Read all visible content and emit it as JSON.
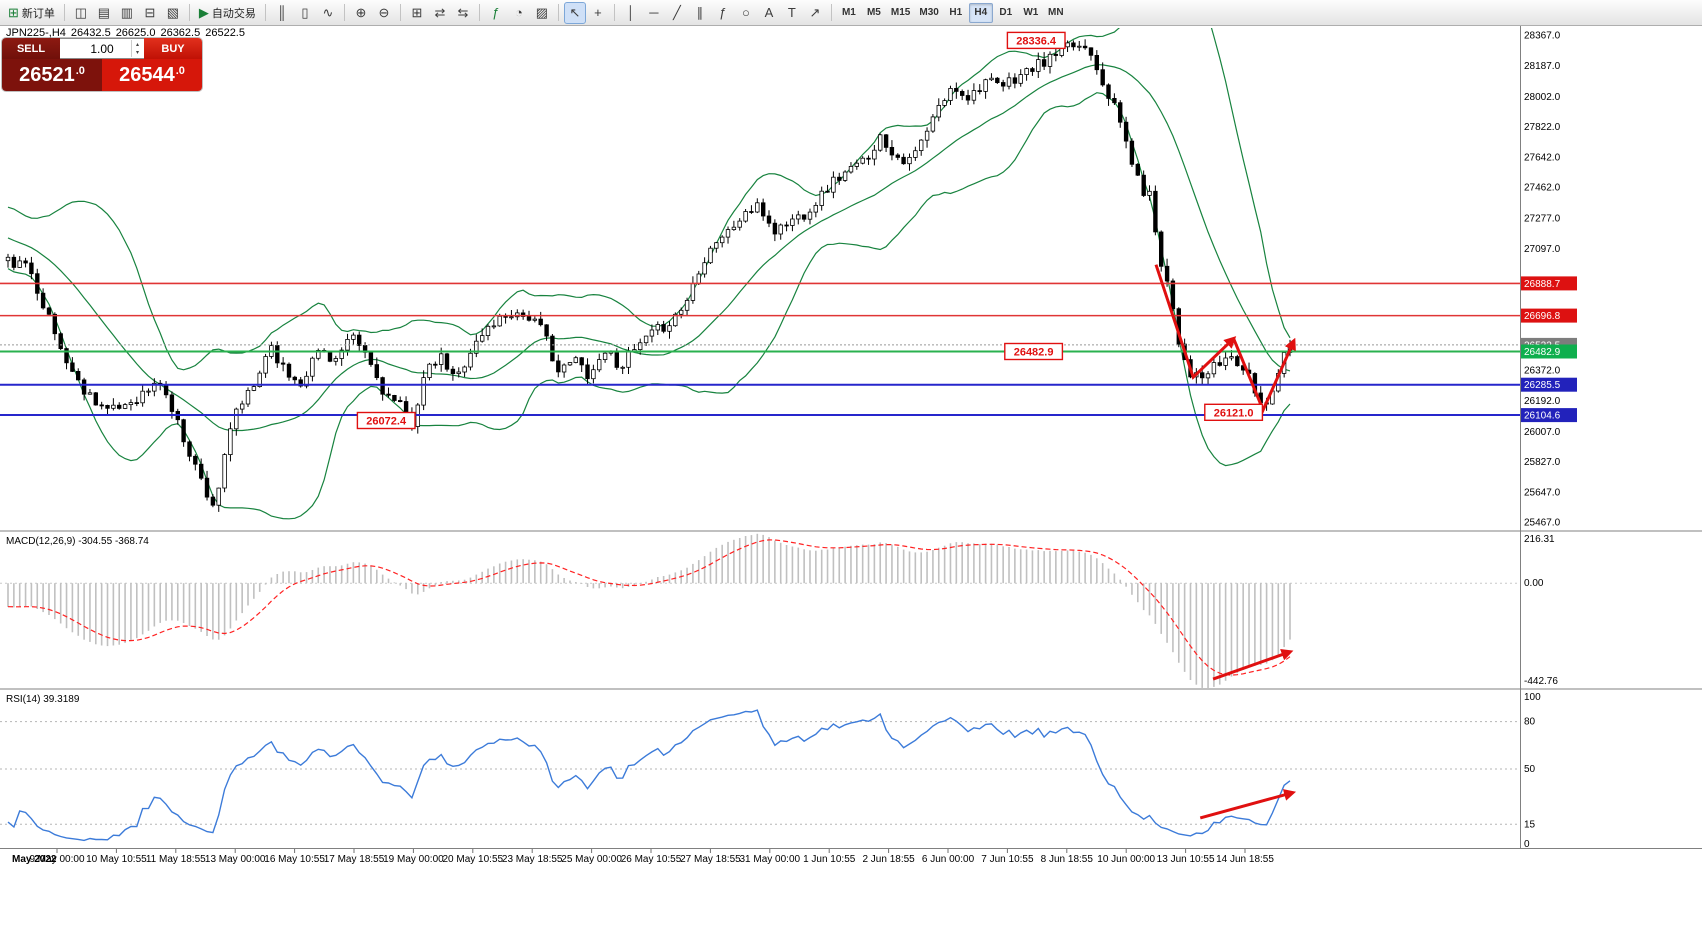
{
  "toolbar": {
    "groups": [
      [
        {
          "name": "new-order-button",
          "glyph": "⊞",
          "glyph_color": "#1a7f37",
          "label": "新订单"
        }
      ],
      [
        {
          "name": "market-watch-icon",
          "glyph": "◫"
        },
        {
          "name": "data-window-icon",
          "glyph": "▤"
        },
        {
          "name": "navigator-icon",
          "glyph": "▥"
        },
        {
          "name": "terminal-icon",
          "glyph": "⊟"
        },
        {
          "name": "strategy-tester-icon",
          "glyph": "▧"
        }
      ],
      [
        {
          "name": "autotrading-button",
          "glyph": "▶",
          "glyph_color": "#1a7f37",
          "label": "自动交易"
        }
      ],
      [
        {
          "name": "bar-chart-icon",
          "glyph": "║"
        },
        {
          "name": "candlestick-chart-icon",
          "glyph": "▯"
        },
        {
          "name": "line-chart-icon",
          "glyph": "∿"
        }
      ],
      [
        {
          "name": "zoom-in-icon",
          "glyph": "⊕"
        },
        {
          "name": "zoom-out-icon",
          "glyph": "⊖"
        }
      ],
      [
        {
          "name": "tile-windows-icon",
          "glyph": "⊞"
        },
        {
          "name": "auto-scroll-icon",
          "glyph": "⇄"
        },
        {
          "name": "chart-shift-icon",
          "glyph": "⇆"
        }
      ],
      [
        {
          "name": "indicators-icon",
          "glyph": "ƒ",
          "glyph_color": "#1a7f37"
        },
        {
          "name": "periods-icon",
          "glyph": "◔"
        },
        {
          "name": "templates-icon",
          "glyph": "▨"
        }
      ],
      [
        {
          "name": "cursor-icon",
          "glyph": "↖",
          "active": true
        },
        {
          "name": "crosshair-icon",
          "glyph": "+"
        }
      ],
      [
        {
          "name": "vertical-line-icon",
          "glyph": "│"
        },
        {
          "name": "horizontal-line-icon",
          "glyph": "─"
        },
        {
          "name": "trendline-icon",
          "glyph": "╱"
        },
        {
          "name": "channel-icon",
          "glyph": "∥"
        },
        {
          "name": "fibonacci-icon",
          "glyph": "ƒ"
        },
        {
          "name": "shapes-icon",
          "glyph": "○"
        },
        {
          "name": "text-icon",
          "glyph": "A"
        },
        {
          "name": "label-icon",
          "glyph": "T"
        },
        {
          "name": "arrow-object-icon",
          "glyph": "↗"
        }
      ]
    ],
    "timeframes": [
      "M1",
      "M5",
      "M15",
      "M30",
      "H1",
      "H4",
      "D1",
      "W1",
      "MN"
    ],
    "active_timeframe": "H4"
  },
  "symbol_bar": {
    "symbol": "JPN225-,H4",
    "open": "26432.5",
    "high": "26625.0",
    "low": "26362.5",
    "close": "26522.5"
  },
  "trade_panel": {
    "sell_label": "SELL",
    "buy_label": "BUY",
    "volume": "1.00",
    "sell_price_big": "26521",
    "sell_price_dec": ".0",
    "buy_price_big": "26544",
    "buy_price_dec": ".0"
  },
  "chart_data": {
    "type": "candlestick",
    "symbol": "JPN225-",
    "timeframe": "H4",
    "ohlc": {
      "open": 26432.5,
      "high": 26625.0,
      "low": 26362.5,
      "close": 26522.5
    },
    "bid": 26521.0,
    "ask": 26544.0,
    "bars": 220,
    "noise_seed": 11,
    "last_close": 26522.5,
    "price_axis": {
      "min": 25420,
      "max": 28410,
      "ticks": [
        "28367.0",
        "28187.0",
        "28002.0",
        "27822.0",
        "27642.0",
        "27462.0",
        "27277.0",
        "27097.0",
        "26372.0",
        "26192.0",
        "26007.0",
        "25827.0",
        "25647.0",
        "25467.0"
      ]
    },
    "price_tags": [
      {
        "text": "26888.7",
        "value": 26888.7,
        "bg": "#dd1111"
      },
      {
        "text": "26696.8",
        "value": 26696.8,
        "bg": "#dd1111"
      },
      {
        "text": "26522.5",
        "value": 26522.5,
        "bg": "#7d7d7d"
      },
      {
        "text": "26482.9",
        "value": 26482.9,
        "bg": "#0faf4e"
      },
      {
        "text": "26285.5",
        "value": 26285.5,
        "bg": "#2222bb"
      },
      {
        "text": "26104.6",
        "value": 26104.6,
        "bg": "#2222bb"
      }
    ],
    "hlines": [
      {
        "value": 26888.7,
        "color": "#e03535",
        "width": 1.6
      },
      {
        "value": 26696.8,
        "color": "#e03535",
        "width": 1.6
      },
      {
        "value": 26482.9,
        "color": "#2ab14f",
        "width": 2
      },
      {
        "value": 26285.5,
        "color": "#2626cc",
        "width": 2
      },
      {
        "value": 26104.6,
        "color": "#2626cc",
        "width": 2
      }
    ],
    "bid_line": {
      "value": 26522.5,
      "color": "#999999"
    },
    "bollinger": {
      "period": 20,
      "deviation": 2,
      "color": "#18833f"
    },
    "candle_up_color": "#ffffff",
    "candle_down_color": "#000000",
    "anchors": [
      [
        0,
        27020
      ],
      [
        0.017,
        26980
      ],
      [
        0.041,
        26500
      ],
      [
        0.056,
        26280
      ],
      [
        0.08,
        26120
      ],
      [
        0.103,
        26220
      ],
      [
        0.119,
        26300
      ],
      [
        0.138,
        25950
      ],
      [
        0.154,
        25660
      ],
      [
        0.161,
        25560
      ],
      [
        0.177,
        26120
      ],
      [
        0.193,
        26280
      ],
      [
        0.204,
        26540
      ],
      [
        0.216,
        26360
      ],
      [
        0.228,
        26300
      ],
      [
        0.243,
        26500
      ],
      [
        0.255,
        26430
      ],
      [
        0.268,
        26560
      ],
      [
        0.278,
        26480
      ],
      [
        0.294,
        26230
      ],
      [
        0.306,
        26150
      ],
      [
        0.315,
        26060
      ],
      [
        0.325,
        26340
      ],
      [
        0.337,
        26450
      ],
      [
        0.349,
        26310
      ],
      [
        0.36,
        26480
      ],
      [
        0.376,
        26640
      ],
      [
        0.392,
        26720
      ],
      [
        0.407,
        26690
      ],
      [
        0.419,
        26580
      ],
      [
        0.43,
        26350
      ],
      [
        0.442,
        26440
      ],
      [
        0.454,
        26340
      ],
      [
        0.466,
        26500
      ],
      [
        0.477,
        26400
      ],
      [
        0.493,
        26520
      ],
      [
        0.505,
        26600
      ],
      [
        0.516,
        26660
      ],
      [
        0.528,
        26760
      ],
      [
        0.54,
        27000
      ],
      [
        0.551,
        27140
      ],
      [
        0.563,
        27200
      ],
      [
        0.575,
        27310
      ],
      [
        0.586,
        27340
      ],
      [
        0.598,
        27200
      ],
      [
        0.61,
        27260
      ],
      [
        0.622,
        27310
      ],
      [
        0.633,
        27400
      ],
      [
        0.645,
        27510
      ],
      [
        0.657,
        27560
      ],
      [
        0.668,
        27620
      ],
      [
        0.68,
        27760
      ],
      [
        0.692,
        27660
      ],
      [
        0.703,
        27610
      ],
      [
        0.715,
        27760
      ],
      [
        0.727,
        27950
      ],
      [
        0.738,
        28060
      ],
      [
        0.75,
        28000
      ],
      [
        0.762,
        28100
      ],
      [
        0.774,
        28050
      ],
      [
        0.785,
        28110
      ],
      [
        0.797,
        28160
      ],
      [
        0.809,
        28210
      ],
      [
        0.82,
        28260
      ],
      [
        0.832,
        28310
      ],
      [
        0.844,
        28290
      ],
      [
        0.851,
        28150
      ],
      [
        0.859,
        28010
      ],
      [
        0.867,
        27860
      ],
      [
        0.875,
        27660
      ],
      [
        0.883,
        27460
      ],
      [
        0.891,
        27410
      ],
      [
        0.898,
        27060
      ],
      [
        0.906,
        26860
      ],
      [
        0.914,
        26520
      ],
      [
        0.922,
        26360
      ],
      [
        0.93,
        26310
      ],
      [
        0.937,
        26360
      ],
      [
        0.945,
        26410
      ],
      [
        0.953,
        26460
      ],
      [
        0.961,
        26400
      ],
      [
        0.969,
        26310
      ],
      [
        0.975,
        26210
      ],
      [
        0.98,
        26140
      ],
      [
        0.988,
        26310
      ],
      [
        0.996,
        26480
      ],
      [
        1,
        26522.5
      ]
    ],
    "annotation_boxes": [
      {
        "text": "28336.4",
        "t": 0.802,
        "value": 28336.4
      },
      {
        "text": "26072.4",
        "t": 0.295,
        "value": 26072.4
      },
      {
        "text": "26482.9",
        "t": 0.8,
        "value": 26482.9
      },
      {
        "text": "26121.0",
        "t": 0.956,
        "value": 26121.0
      }
    ],
    "trend_arrows": {
      "color": "#e01010",
      "zigzag": [
        [
          0.8955,
          27000
        ],
        [
          0.9245,
          26330
        ],
        [
          0.956,
          26560
        ],
        [
          0.979,
          26135
        ],
        [
          1.003,
          26545
        ]
      ]
    },
    "macd": {
      "name": "MACD(12,26,9)",
      "values": "-304.55 -368.74",
      "fast": 12,
      "slow": 26,
      "signal": 9,
      "max": 216.31,
      "min": -442.76,
      "ticks": [
        {
          "text": "216.31",
          "value": 216.31
        },
        {
          "text": "0.00",
          "value": 0
        },
        {
          "text": "-442.76",
          "value": -442.76
        }
      ],
      "histogram_color": "#c0c0c0",
      "signal_color": "#ff2222",
      "arrow": [
        [
          0.94,
          -405
        ],
        [
          1.0,
          -290
        ]
      ]
    },
    "rsi": {
      "name": "RSI(14)",
      "value": "39.3189",
      "period": 14,
      "max": 100,
      "min": 0,
      "ticks": [
        {
          "text": "100",
          "value": 100
        },
        {
          "text": "80",
          "value": 80
        },
        {
          "text": "50",
          "value": 50
        },
        {
          "text": "15",
          "value": 15
        },
        {
          "text": "0",
          "value": 0
        }
      ],
      "levels": [
        80,
        50,
        15
      ],
      "color": "#3c7bd9",
      "arrow": [
        [
          0.93,
          19
        ],
        [
          1.002,
          35
        ]
      ]
    },
    "time_labels": [
      "May 2022",
      "9 May 00:00",
      "10 May 10:55",
      "11 May 18:55",
      "13 May 00:00",
      "16 May 10:55",
      "17 May 18:55",
      "19 May 00:00",
      "20 May 10:55",
      "23 May 18:55",
      "25 May 00:00",
      "26 May 10:55",
      "27 May 18:55",
      "31 May 00:00",
      "1 Jun 10:55",
      "2 Jun 18:55",
      "6 Jun 00:00",
      "7 Jun 10:55",
      "8 Jun 18:55",
      "10 Jun 00:00",
      "13 Jun 10:55",
      "14 Jun 18:55"
    ]
  }
}
